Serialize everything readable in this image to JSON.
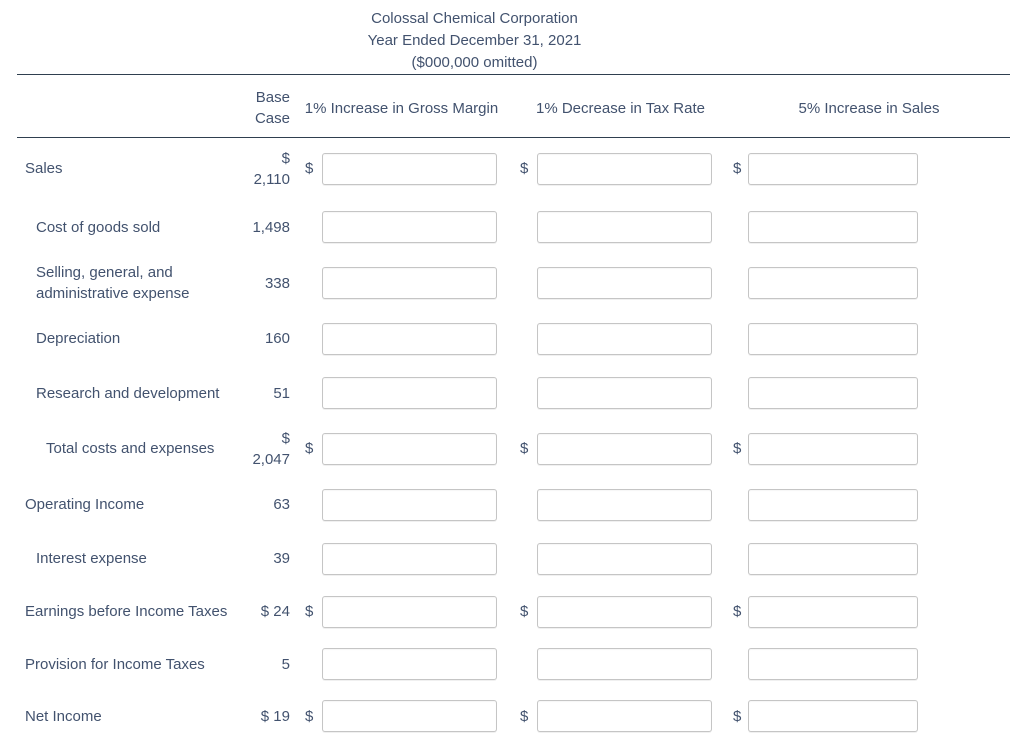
{
  "title": {
    "company": "Colossal Chemical Corporation",
    "period": "Year Ended December 31, 2021",
    "units": "($000,000 omitted)"
  },
  "columns": {
    "base": "Base Case",
    "scenarios": [
      "1% Increase in Gross Margin",
      "1% Decrease in Tax Rate",
      "5% Increase in Sales"
    ]
  },
  "currency_symbol": "$",
  "rows": [
    {
      "label": "Sales",
      "indent": 0,
      "base": "$ 2,110",
      "dollar": true
    },
    {
      "label": "Cost of goods sold",
      "indent": 1,
      "base": "1,498",
      "dollar": false
    },
    {
      "label": "Selling, general, and administrative expense",
      "indent": 1,
      "base": "338",
      "dollar": false
    },
    {
      "label": "Depreciation",
      "indent": 1,
      "base": "160",
      "dollar": false
    },
    {
      "label": "Research and development",
      "indent": 1,
      "base": "51",
      "dollar": false
    },
    {
      "label": "Total costs and expenses",
      "indent": 2,
      "base": "$ 2,047",
      "dollar": true
    },
    {
      "label": "Operating Income",
      "indent": 0,
      "base": "63",
      "dollar": false
    },
    {
      "label": "Interest expense",
      "indent": 1,
      "base": "39",
      "dollar": false
    },
    {
      "label": "Earnings before Income Taxes",
      "indent": 0,
      "base": "$ 24",
      "dollar": true
    },
    {
      "label": "Provision for Income Taxes",
      "indent": 0,
      "base": "5",
      "dollar": false
    },
    {
      "label": "Net Income",
      "indent": 0,
      "base": "$ 19",
      "dollar": true
    }
  ],
  "inputs": {
    "value": "",
    "placeholder": ""
  },
  "colors": {
    "text": "#42526e",
    "rule": "#2f3f4f",
    "input_border": "#c5c5c5",
    "background": "#ffffff"
  }
}
